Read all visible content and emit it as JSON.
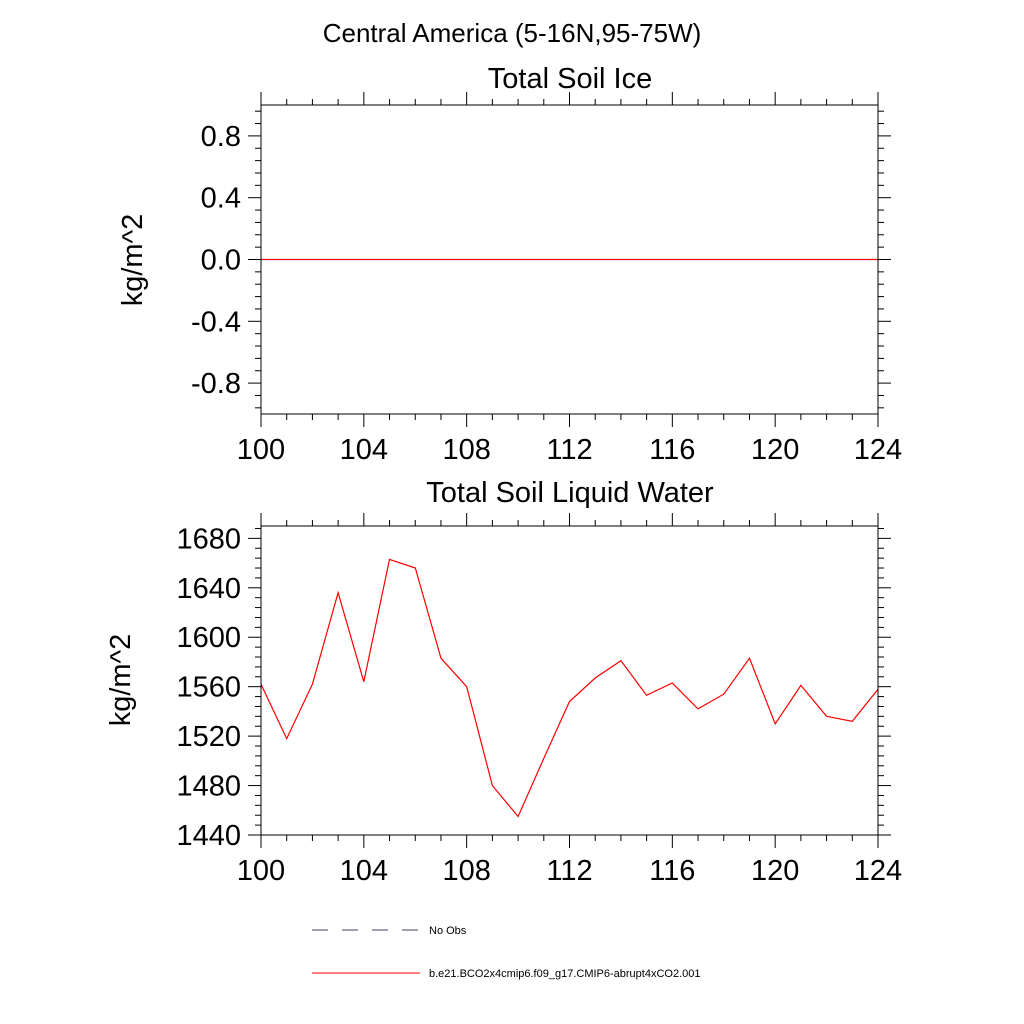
{
  "page_title": "Central America (5-16N,95-75W)",
  "colors": {
    "series": "#ff0000",
    "axis": "#000000",
    "obs": "#3b3f6b"
  },
  "legend": {
    "items": [
      {
        "label": "No Obs",
        "style": "dashed",
        "color": "#3b3f6b"
      },
      {
        "label": "b.e21.BCO2x4cmip6.f09_g17.CMIP6-abrupt4xCO2.001",
        "style": "solid",
        "color": "#ff0000"
      }
    ]
  },
  "chart_data": [
    {
      "type": "line",
      "title": "Total Soil Ice",
      "xlabel": "",
      "ylabel": "kg/m^2",
      "xlim": [
        100,
        124
      ],
      "ylim": [
        -1,
        1
      ],
      "x_ticks": [
        100,
        104,
        108,
        112,
        116,
        120,
        124
      ],
      "x_tick_labels": [
        "100",
        "104",
        "108",
        "112",
        "116",
        "120",
        "124"
      ],
      "y_ticks": [
        0.8,
        0.4,
        0.0,
        -0.4,
        -0.8
      ],
      "y_tick_labels": [
        "0.8",
        "0.4",
        "0.0",
        "-0.4",
        "-0.8"
      ],
      "grid": false,
      "series": [
        {
          "name": "b.e21.BCO2x4cmip6.f09_g17.CMIP6-abrupt4xCO2.001",
          "x": [
            100,
            101,
            102,
            103,
            104,
            105,
            106,
            107,
            108,
            109,
            110,
            111,
            112,
            113,
            114,
            115,
            116,
            117,
            118,
            119,
            120,
            121,
            122,
            123,
            124
          ],
          "values": [
            0,
            0,
            0,
            0,
            0,
            0,
            0,
            0,
            0,
            0,
            0,
            0,
            0,
            0,
            0,
            0,
            0,
            0,
            0,
            0,
            0,
            0,
            0,
            0,
            0
          ]
        }
      ]
    },
    {
      "type": "line",
      "title": "Total Soil Liquid Water",
      "xlabel": "",
      "ylabel": "kg/m^2",
      "xlim": [
        100,
        124
      ],
      "ylim": [
        1440,
        1690
      ],
      "x_ticks": [
        100,
        104,
        108,
        112,
        116,
        120,
        124
      ],
      "x_tick_labels": [
        "100",
        "104",
        "108",
        "112",
        "116",
        "120",
        "124"
      ],
      "y_ticks": [
        1680,
        1640,
        1600,
        1560,
        1520,
        1480,
        1440
      ],
      "y_tick_labels": [
        "1680",
        "1640",
        "1600",
        "1560",
        "1520",
        "1480",
        "1440"
      ],
      "grid": false,
      "series": [
        {
          "name": "b.e21.BCO2x4cmip6.f09_g17.CMIP6-abrupt4xCO2.001",
          "x": [
            100,
            101,
            102,
            103,
            104,
            105,
            106,
            107,
            108,
            109,
            110,
            111,
            112,
            113,
            114,
            115,
            116,
            117,
            118,
            119,
            120,
            121,
            122,
            123,
            124
          ],
          "values": [
            1562,
            1518,
            1562,
            1636,
            1564,
            1663,
            1656,
            1583,
            1560,
            1480,
            1455,
            1502,
            1548,
            1567,
            1581,
            1553,
            1563,
            1542,
            1554,
            1583,
            1530,
            1561,
            1536,
            1532,
            1558
          ]
        }
      ]
    }
  ]
}
